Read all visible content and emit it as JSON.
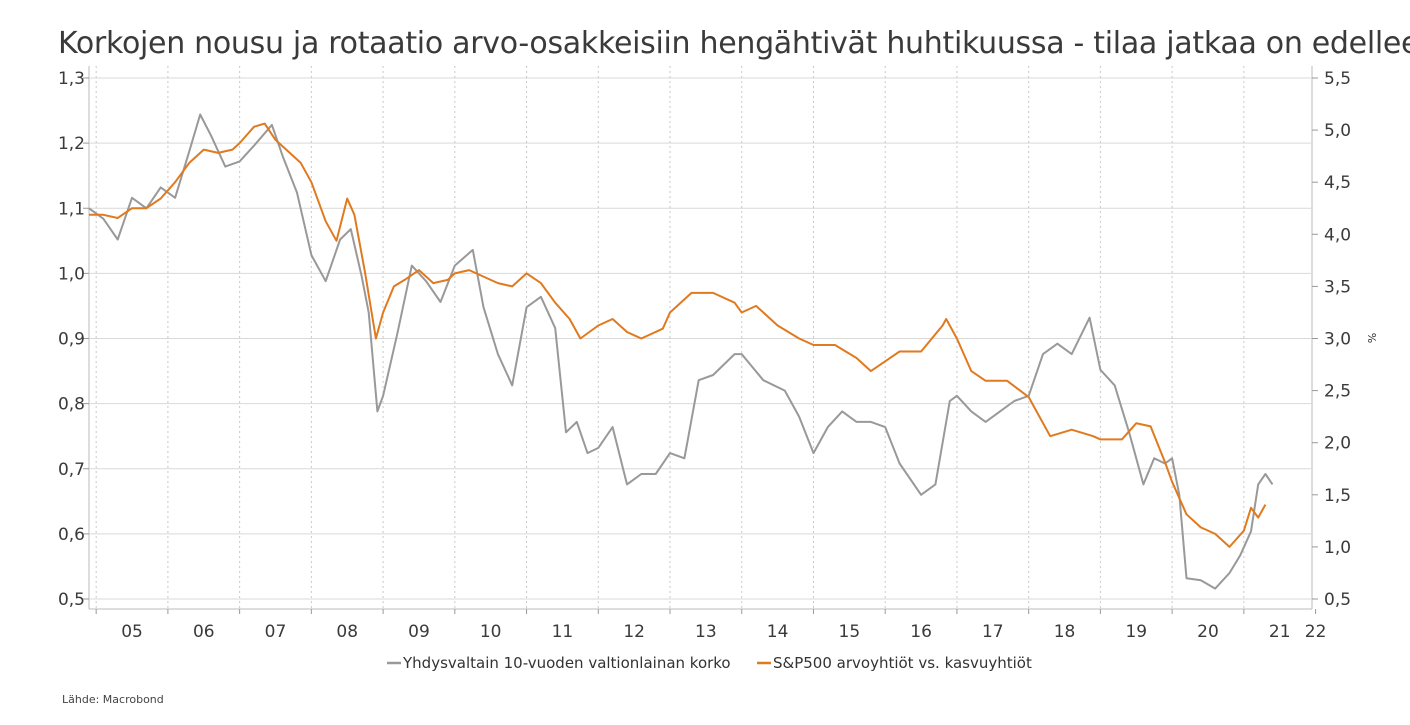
{
  "chart_data": {
    "type": "line",
    "title": "Korkojen nousu ja rotaatio arvo-osakkeisiin hengähtivät huhtikuussa - tilaa jatkaa on edelleen",
    "source": "Lähde: Macrobond",
    "left_axis": {
      "min": 0.5,
      "max": 1.3,
      "ticks": [
        "0,5",
        "0,6",
        "0,7",
        "0,8",
        "0,9",
        "1,0",
        "1,1",
        "1,2",
        "1,3"
      ]
    },
    "right_axis": {
      "min": 0.5,
      "max": 5.5,
      "unit": "%",
      "ticks": [
        "0,5",
        "1,0",
        "1,5",
        "2,0",
        "2,5",
        "3,0",
        "3,5",
        "4,0",
        "4,5",
        "5,0",
        "5,5"
      ]
    },
    "x_axis": {
      "labels": [
        "05",
        "06",
        "07",
        "08",
        "09",
        "10",
        "11",
        "12",
        "13",
        "14",
        "15",
        "16",
        "17",
        "18",
        "19",
        "20",
        "21",
        "22"
      ],
      "start_year": 2004.9,
      "end_year": 2021.95
    },
    "grid": true,
    "legend_position": "bottom",
    "series": [
      {
        "name": "Yhdysvaltain 10-vuoden valtionlainan korko",
        "axis": "right",
        "color": "#999999",
        "x": [
          2004.9,
          2005.1,
          2005.3,
          2005.5,
          2005.7,
          2005.9,
          2006.1,
          2006.3,
          2006.45,
          2006.6,
          2006.8,
          2007.0,
          2007.2,
          2007.45,
          2007.6,
          2007.8,
          2008.0,
          2008.2,
          2008.4,
          2008.55,
          2008.7,
          2008.8,
          2008.92,
          2009.0,
          2009.2,
          2009.4,
          2009.6,
          2009.8,
          2010.0,
          2010.25,
          2010.4,
          2010.6,
          2010.8,
          2011.0,
          2011.2,
          2011.4,
          2011.55,
          2011.7,
          2011.85,
          2012.0,
          2012.2,
          2012.4,
          2012.6,
          2012.8,
          2013.0,
          2013.2,
          2013.4,
          2013.6,
          2013.9,
          2014.0,
          2014.3,
          2014.6,
          2014.8,
          2015.0,
          2015.2,
          2015.4,
          2015.6,
          2015.8,
          2016.0,
          2016.2,
          2016.5,
          2016.7,
          2016.9,
          2017.0,
          2017.2,
          2017.4,
          2017.6,
          2017.8,
          2018.0,
          2018.2,
          2018.4,
          2018.6,
          2018.85,
          2019.0,
          2019.2,
          2019.4,
          2019.6,
          2019.75,
          2019.9,
          2020.0,
          2020.1,
          2020.2,
          2020.4,
          2020.6,
          2020.8,
          2020.95,
          2021.1,
          2021.2,
          2021.3,
          2021.4
        ],
        "values": [
          4.25,
          4.15,
          3.95,
          4.35,
          4.25,
          4.45,
          4.35,
          4.8,
          5.15,
          4.95,
          4.65,
          4.7,
          4.85,
          5.05,
          4.75,
          4.4,
          3.8,
          3.55,
          3.95,
          4.05,
          3.6,
          3.25,
          2.3,
          2.45,
          3.05,
          3.7,
          3.55,
          3.35,
          3.7,
          3.85,
          3.3,
          2.85,
          2.55,
          3.3,
          3.4,
          3.1,
          2.1,
          2.2,
          1.9,
          1.95,
          2.15,
          1.6,
          1.7,
          1.7,
          1.9,
          1.85,
          2.6,
          2.65,
          2.85,
          2.85,
          2.6,
          2.5,
          2.25,
          1.9,
          2.15,
          2.3,
          2.2,
          2.2,
          2.15,
          1.8,
          1.5,
          1.6,
          2.4,
          2.45,
          2.3,
          2.2,
          2.3,
          2.4,
          2.45,
          2.85,
          2.95,
          2.85,
          3.2,
          2.7,
          2.55,
          2.1,
          1.6,
          1.85,
          1.8,
          1.85,
          1.5,
          0.7,
          0.68,
          0.6,
          0.75,
          0.92,
          1.15,
          1.6,
          1.7,
          1.6
        ]
      },
      {
        "name": "S&P500 arvoyhtiöt vs. kasvuyhtiöt",
        "axis": "left",
        "color": "#e07a1f",
        "x": [
          2004.9,
          2005.1,
          2005.3,
          2005.5,
          2005.7,
          2005.9,
          2006.1,
          2006.3,
          2006.5,
          2006.7,
          2006.9,
          2007.0,
          2007.2,
          2007.35,
          2007.5,
          2007.7,
          2007.85,
          2008.0,
          2008.2,
          2008.35,
          2008.5,
          2008.6,
          2008.75,
          2008.9,
          2009.0,
          2009.15,
          2009.3,
          2009.5,
          2009.7,
          2009.9,
          2010.0,
          2010.2,
          2010.4,
          2010.6,
          2010.8,
          2011.0,
          2011.2,
          2011.4,
          2011.6,
          2011.75,
          2012.0,
          2012.2,
          2012.4,
          2012.6,
          2012.9,
          2013.0,
          2013.3,
          2013.6,
          2013.9,
          2014.0,
          2014.2,
          2014.5,
          2014.8,
          2015.0,
          2015.3,
          2015.6,
          2015.8,
          2016.0,
          2016.2,
          2016.5,
          2016.8,
          2016.85,
          2017.0,
          2017.2,
          2017.4,
          2017.7,
          2018.0,
          2018.3,
          2018.6,
          2018.9,
          2019.0,
          2019.3,
          2019.5,
          2019.7,
          2019.9,
          2020.0,
          2020.2,
          2020.4,
          2020.6,
          2020.8,
          2021.0,
          2021.1,
          2021.2,
          2021.3
        ],
        "values": [
          1.09,
          1.09,
          1.085,
          1.1,
          1.1,
          1.115,
          1.14,
          1.17,
          1.19,
          1.185,
          1.19,
          1.2,
          1.225,
          1.23,
          1.205,
          1.185,
          1.17,
          1.14,
          1.08,
          1.05,
          1.115,
          1.09,
          1.0,
          0.9,
          0.94,
          0.98,
          0.99,
          1.005,
          0.985,
          0.99,
          1.0,
          1.005,
          0.995,
          0.985,
          0.98,
          1.0,
          0.985,
          0.955,
          0.93,
          0.9,
          0.92,
          0.93,
          0.91,
          0.9,
          0.915,
          0.94,
          0.97,
          0.97,
          0.955,
          0.94,
          0.95,
          0.92,
          0.9,
          0.89,
          0.89,
          0.87,
          0.85,
          0.865,
          0.88,
          0.88,
          0.92,
          0.93,
          0.9,
          0.85,
          0.835,
          0.835,
          0.81,
          0.75,
          0.76,
          0.75,
          0.745,
          0.745,
          0.77,
          0.765,
          0.71,
          0.68,
          0.63,
          0.61,
          0.6,
          0.58,
          0.605,
          0.64,
          0.625,
          0.645
        ]
      }
    ]
  }
}
